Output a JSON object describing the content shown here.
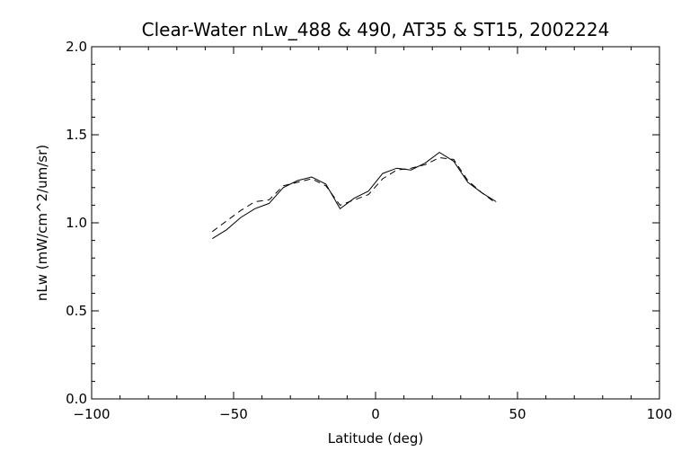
{
  "chart_data": {
    "type": "line",
    "title": "Clear-Water nLw_488 & 490, AT35 & ST15, 2002224",
    "xlabel": "Latitude (deg)",
    "ylabel": "nLw (mW/cm^2/um/sr)",
    "xlim": [
      -100,
      100
    ],
    "ylim": [
      0.0,
      2.0
    ],
    "x_ticks": [
      -100,
      -50,
      0,
      50,
      100
    ],
    "x_tick_labels": [
      "−100",
      "−50",
      "0",
      "50",
      "100"
    ],
    "y_ticks": [
      0.0,
      0.5,
      1.0,
      1.5,
      2.0
    ],
    "y_tick_labels": [
      "0.0",
      "0.5",
      "1.0",
      "1.5",
      "2.0"
    ],
    "grid": false,
    "series": [
      {
        "style": "solid",
        "color": "#000000",
        "x": [
          -57.5,
          -52.5,
          -47.5,
          -42.5,
          -37.5,
          -32.5,
          -27.5,
          -22.5,
          -17.5,
          -12.5,
          -7.5,
          -2.5,
          2.5,
          7.5,
          12.5,
          17.5,
          22.5,
          27.5,
          32.5,
          37.5,
          42.5
        ],
        "y": [
          0.91,
          0.96,
          1.03,
          1.08,
          1.11,
          1.2,
          1.24,
          1.26,
          1.22,
          1.08,
          1.14,
          1.18,
          1.28,
          1.31,
          1.3,
          1.34,
          1.4,
          1.35,
          1.23,
          1.17,
          1.12
        ]
      },
      {
        "style": "dashed",
        "color": "#000000",
        "x": [
          -57.5,
          -52.5,
          -47.5,
          -42.5,
          -37.5,
          -32.5,
          -27.5,
          -22.5,
          -17.5,
          -12.5,
          -7.5,
          -2.5,
          2.5,
          7.5,
          12.5,
          17.5,
          22.5,
          27.5,
          32.5,
          37.5,
          42.5
        ],
        "y": [
          0.95,
          1.01,
          1.07,
          1.12,
          1.13,
          1.21,
          1.23,
          1.25,
          1.21,
          1.1,
          1.13,
          1.16,
          1.25,
          1.3,
          1.31,
          1.33,
          1.37,
          1.36,
          1.24,
          1.17,
          1.11
        ]
      }
    ]
  }
}
